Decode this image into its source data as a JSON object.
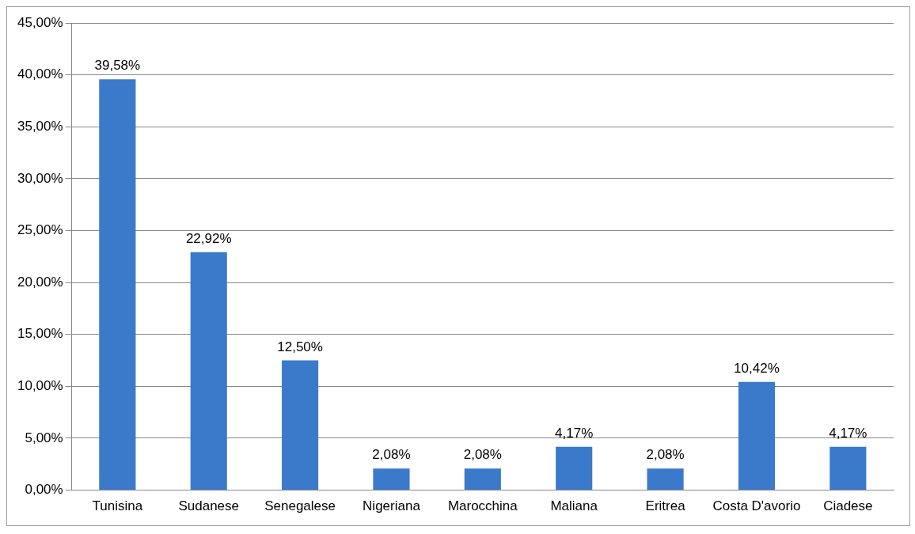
{
  "chart_data": {
    "type": "bar",
    "categories": [
      "Tunisina",
      "Sudanese",
      "Senegalese",
      "Nigeriana",
      "Marocchina",
      "Maliana",
      "Eritrea",
      "Costa D'avorio",
      "Ciadese"
    ],
    "values": [
      39.58,
      22.92,
      12.5,
      2.08,
      2.08,
      4.17,
      2.08,
      10.42,
      4.17
    ],
    "value_labels": [
      "39,58%",
      "22,92%",
      "12,50%",
      "2,08%",
      "2,08%",
      "4,17%",
      "2,08%",
      "10,42%",
      "4,17%"
    ],
    "color": "#3b7acb",
    "ylim": [
      0,
      45
    ],
    "yticks": [
      {
        "value": 0,
        "label": "0,00%"
      },
      {
        "value": 5,
        "label": "5,00%"
      },
      {
        "value": 10,
        "label": "10,00%"
      },
      {
        "value": 15,
        "label": "15,00%"
      },
      {
        "value": 20,
        "label": "20,00%"
      },
      {
        "value": 25,
        "label": "25,00%"
      },
      {
        "value": 30,
        "label": "30,00%"
      },
      {
        "value": 35,
        "label": "35,00%"
      },
      {
        "value": 40,
        "label": "40,00%"
      },
      {
        "value": 45,
        "label": "45,00%"
      }
    ],
    "grid": "y"
  }
}
